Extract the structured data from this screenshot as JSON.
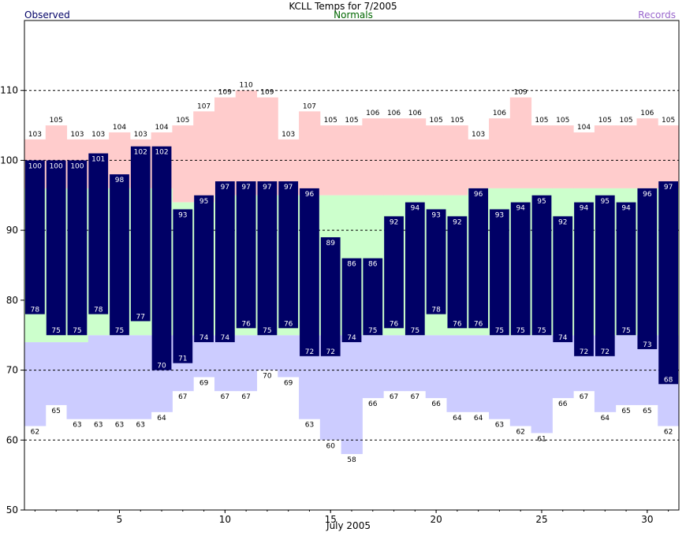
{
  "chart_data": {
    "type": "bar",
    "title": "KCLL Temps for 7/2005",
    "legend": {
      "observed": "Observed",
      "normals": "Normals",
      "records": "Records",
      "placement": "top"
    },
    "xlabel": "July 2005",
    "x_ticks": [
      "5",
      "10",
      "15",
      "20",
      "25",
      "30"
    ],
    "y_ticks": [
      "50",
      "60",
      "70",
      "80",
      "90",
      "100",
      "110"
    ],
    "ylim": [
      50,
      120
    ],
    "grid": "dashed horizontal at 60, 70, 90, 100, 110",
    "days": [
      1,
      2,
      3,
      4,
      5,
      6,
      7,
      8,
      9,
      10,
      11,
      12,
      13,
      14,
      15,
      16,
      17,
      18,
      19,
      20,
      21,
      22,
      23,
      24,
      25,
      26,
      27,
      28,
      29,
      30,
      31
    ],
    "observed_high": [
      100,
      100,
      100,
      101,
      98,
      102,
      102,
      93,
      95,
      97,
      97,
      97,
      97,
      96,
      89,
      86,
      86,
      92,
      94,
      93,
      92,
      96,
      93,
      94,
      95,
      92,
      94,
      95,
      94,
      96,
      97
    ],
    "observed_low": [
      78,
      75,
      75,
      78,
      75,
      77,
      70,
      71,
      74,
      74,
      76,
      75,
      76,
      72,
      72,
      74,
      75,
      76,
      75,
      78,
      76,
      76,
      75,
      75,
      75,
      74,
      72,
      72,
      75,
      73,
      68
    ],
    "normal_high": [
      96,
      96,
      96,
      96,
      96,
      96,
      96,
      94,
      94,
      95,
      95,
      95,
      95,
      95,
      95,
      95,
      95,
      95,
      95,
      95,
      95,
      96,
      96,
      96,
      96,
      96,
      96,
      96,
      96,
      96,
      96
    ],
    "normal_low": [
      74,
      74,
      74,
      75,
      75,
      75,
      75,
      75,
      75,
      75,
      75,
      75,
      75,
      75,
      75,
      75,
      75,
      75,
      75,
      75,
      75,
      75,
      75,
      75,
      75,
      75,
      75,
      75,
      75,
      75,
      75
    ],
    "record_high": [
      103,
      105,
      103,
      103,
      104,
      103,
      104,
      105,
      107,
      109,
      110,
      109,
      103,
      107,
      105,
      105,
      106,
      106,
      106,
      105,
      105,
      103,
      106,
      109,
      105,
      105,
      104,
      105,
      105,
      106,
      105
    ],
    "record_low": [
      62,
      65,
      63,
      63,
      63,
      63,
      64,
      67,
      69,
      67,
      67,
      70,
      69,
      63,
      60,
      58,
      66,
      67,
      67,
      66,
      64,
      64,
      63,
      62,
      61,
      66,
      67,
      64,
      65,
      65,
      62
    ],
    "colors": {
      "observed": "#000066",
      "normals": "#ccffcc",
      "record_high": "#ffcccc",
      "record_low": "#ccccff",
      "legend_observed": "#000066",
      "legend_normals": "#006600",
      "legend_records": "#9966cc"
    }
  }
}
